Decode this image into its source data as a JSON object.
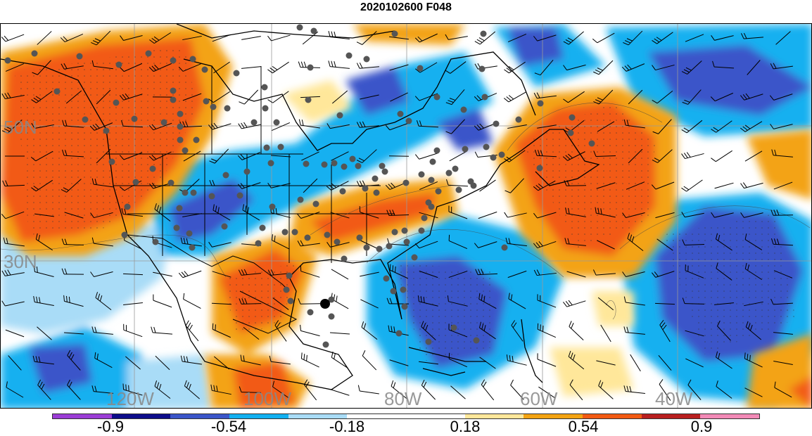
{
  "title": "2020102600 F048",
  "lat_labels": [
    "50N",
    "30N"
  ],
  "lon_labels": [
    "120W",
    "100W",
    "80W",
    "60W",
    "40W"
  ],
  "colorbar": {
    "ticks": [
      "-0.9",
      "-0.54",
      "-0.18",
      "0.18",
      "0.54",
      "0.9"
    ],
    "colors": [
      "#9b3dd6",
      "#0c0c8a",
      "#3b55c9",
      "#12b0f0",
      "#a9dcf7",
      "#ffffff",
      "#ffffff",
      "#ffe79a",
      "#f3a312",
      "#f25a13",
      "#b81f1f",
      "#f28ab6"
    ]
  },
  "legend_colors": {
    "deep_blue": "#3b55c9",
    "blue": "#12b0f0",
    "light_blue": "#a9dcf7",
    "light_yellow": "#ffe79a",
    "orange": "#f3a312",
    "red_orange": "#f25a13"
  }
}
